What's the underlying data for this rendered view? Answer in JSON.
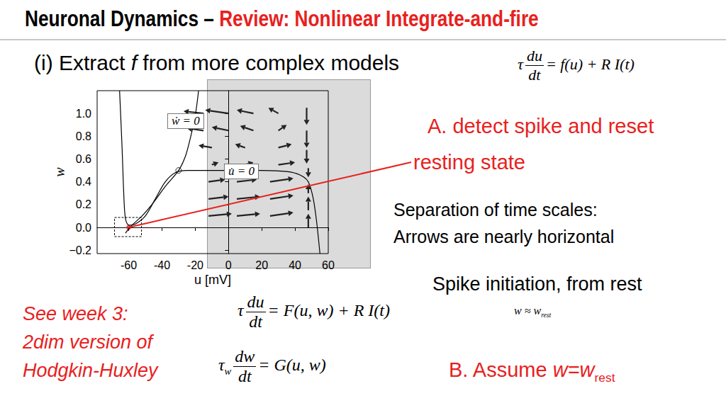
{
  "title": {
    "main": "Neuronal Dynamics – ",
    "highlight": "Review: Nonlinear Integrate-and-fire"
  },
  "heading": [
    "(i) Extract ",
    {
      "italic": "f"
    },
    "  from more complex models"
  ],
  "eq_model": [
    "τ",
    {
      "frac": [
        "du",
        "dt"
      ]
    },
    "= f(u) + R I(t)"
  ],
  "notes": {
    "spike_reset": "A. detect spike and reset",
    "resting_state": "resting state",
    "separation": [
      "Separation of time scales:",
      "Arrows are nearly horizontal"
    ],
    "initiation": "Spike initiation, from rest",
    "initiation_eq": [
      "w ≈ ",
      {
        "sub": [
          "w",
          "rest"
        ]
      }
    ],
    "see_week": [
      "See week 3:",
      "2dim version of",
      "Hodgkin-Huxley"
    ],
    "assume": [
      "B.  Assume ",
      {
        "sub": [
          "w=w",
          "rest"
        ]
      }
    ]
  },
  "eq_u": [
    "τ",
    {
      "frac": [
        "du",
        "dt"
      ]
    },
    "= F(u, w) + R I(t)"
  ],
  "eq_w": [
    {
      "sub": [
        "τ",
        "w"
      ]
    },
    {
      "frac": [
        "dw",
        "dt"
      ]
    },
    "= G(u, w)"
  ],
  "chart_data": {
    "type": "line",
    "xlabel": "u [mV]",
    "ylabel": "w",
    "xlim": [
      -79,
      60
    ],
    "xticks": [
      -60,
      -40,
      -20,
      0,
      20,
      40,
      60
    ],
    "ylim": [
      -0.23,
      1.2
    ],
    "yticks": [
      {
        "value": -0.2,
        "label": "−0.2"
      },
      {
        "value": 0,
        "label": "0.0"
      },
      {
        "value": 0.2,
        "label": "0.2"
      },
      {
        "value": 0.4,
        "label": "0.4"
      },
      {
        "value": 0.6,
        "label": "0.6"
      },
      {
        "value": 0.8,
        "label": "0.8"
      },
      {
        "value": 1.0,
        "label": "1.0"
      }
    ],
    "grid": false,
    "series": [
      {
        "name": "ẇ = 0",
        "color": "black",
        "values": [
          [
            -62,
            -0.05
          ],
          [
            -58,
            0.02
          ],
          [
            -52,
            0.1
          ],
          [
            -45,
            0.22
          ],
          [
            -38,
            0.36
          ],
          [
            -30,
            0.5
          ],
          [
            -26,
            0.62
          ],
          [
            -23,
            0.78
          ],
          [
            -20,
            0.98
          ],
          [
            -18,
            1.2
          ]
        ]
      },
      {
        "name": "u̇ = 0",
        "color": "black",
        "values": [
          [
            -65.5,
            1.2
          ],
          [
            -64,
            0.7
          ],
          [
            -63,
            0.3
          ],
          [
            -62,
            0.08
          ],
          [
            -60,
            0.02
          ],
          [
            -56,
            0.03
          ],
          [
            -50,
            0.1
          ],
          [
            -44,
            0.25
          ],
          [
            -38,
            0.4
          ],
          [
            -32,
            0.48
          ],
          [
            -25,
            0.5
          ],
          [
            0,
            0.5
          ],
          [
            20,
            0.5
          ],
          [
            35,
            0.49
          ],
          [
            43,
            0.46
          ],
          [
            48,
            0.4
          ],
          [
            51,
            0.25
          ],
          [
            53,
            0.05
          ],
          [
            55,
            -0.23
          ]
        ]
      }
    ],
    "fixed_point": [
      -30,
      0.5
    ],
    "rest_point": [
      -60,
      0
    ],
    "vector_field": [
      [
        -15,
        1.0,
        -12,
        0.02
      ],
      [
        0,
        1.0,
        -14,
        0.03
      ],
      [
        15,
        1.0,
        -10,
        0.03
      ],
      [
        30,
        1.0,
        -6,
        0.05
      ],
      [
        47,
        1.05,
        0,
        -0.15
      ],
      [
        -15,
        0.85,
        -10,
        0.02
      ],
      [
        0,
        0.85,
        -10,
        0.03
      ],
      [
        15,
        0.85,
        -8,
        0.04
      ],
      [
        30,
        0.85,
        5,
        0.05
      ],
      [
        47,
        0.85,
        0,
        -0.15
      ],
      [
        -10,
        0.7,
        -8,
        0.02
      ],
      [
        10,
        0.7,
        -6,
        0.03
      ],
      [
        30,
        0.7,
        8,
        0.03
      ],
      [
        47,
        0.68,
        0,
        -0.12
      ],
      [
        -10,
        0.55,
        4,
        0.02
      ],
      [
        10,
        0.55,
        5,
        0.02
      ],
      [
        30,
        0.55,
        10,
        0.02
      ],
      [
        48,
        0.52,
        0,
        -0.08
      ],
      [
        -12,
        0.4,
        10,
        0.02
      ],
      [
        5,
        0.4,
        12,
        0.02
      ],
      [
        25,
        0.4,
        14,
        0.03
      ],
      [
        48,
        0.3,
        0,
        0.08
      ],
      [
        -12,
        0.25,
        12,
        0.02
      ],
      [
        5,
        0.25,
        14,
        0.02
      ],
      [
        25,
        0.25,
        14,
        0.03
      ],
      [
        48,
        0.15,
        0,
        0.12
      ],
      [
        -12,
        0.1,
        14,
        0.02
      ],
      [
        5,
        0.1,
        14,
        0.02
      ],
      [
        25,
        0.1,
        14,
        0.03
      ],
      [
        48,
        0.0,
        0,
        0.12
      ]
    ]
  }
}
